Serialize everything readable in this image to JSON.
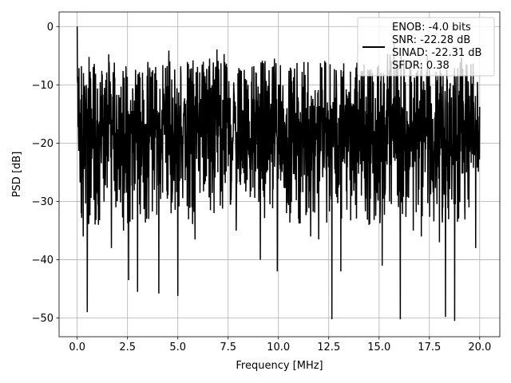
{
  "chart_data": {
    "type": "line",
    "xlabel": "Frequency [MHz]",
    "ylabel": "PSD [dB]",
    "xlim": [
      -0.9,
      21.0
    ],
    "ylim": [
      -53.2,
      2.5
    ],
    "x_ticks": [
      0.0,
      2.5,
      5.0,
      7.5,
      10.0,
      12.5,
      15.0,
      17.5,
      20.0
    ],
    "x_tick_labels": [
      "0.0",
      "2.5",
      "5.0",
      "7.5",
      "10.0",
      "12.5",
      "15.0",
      "17.5",
      "20.0"
    ],
    "y_ticks": [
      0,
      -10,
      -20,
      -30,
      -40,
      -50
    ],
    "y_tick_labels": [
      "0",
      "−10",
      "−20",
      "−30",
      "−40",
      "−50"
    ],
    "grid": true,
    "legend_position": "top-right",
    "legend": {
      "lines": [
        "ENOB: -4.0 bits",
        "SNR: -22.28 dB",
        "SINAD: -22.31 dB",
        "SFDR: 0.38"
      ]
    },
    "series": [
      {
        "color": "#000000",
        "x_range": [
          0.0,
          20.0
        ],
        "typical_band_db": [
          -28,
          -8
        ],
        "peak": {
          "x": 0.0,
          "y": 0.0
        },
        "dips": [
          {
            "x": 0.2,
            "y": -32
          },
          {
            "x": 0.3,
            "y": -36
          },
          {
            "x": 0.5,
            "y": -49
          },
          {
            "x": 0.6,
            "y": -32
          },
          {
            "x": 1.05,
            "y": -34
          },
          {
            "x": 1.7,
            "y": -38
          },
          {
            "x": 2.3,
            "y": -35
          },
          {
            "x": 2.55,
            "y": -43.5
          },
          {
            "x": 3.0,
            "y": -45.5
          },
          {
            "x": 3.55,
            "y": -33
          },
          {
            "x": 4.05,
            "y": -45.8
          },
          {
            "x": 5.0,
            "y": -46.2
          },
          {
            "x": 5.85,
            "y": -36.5
          },
          {
            "x": 6.8,
            "y": -32
          },
          {
            "x": 7.9,
            "y": -35
          },
          {
            "x": 9.1,
            "y": -40
          },
          {
            "x": 9.95,
            "y": -42
          },
          {
            "x": 10.4,
            "y": -32
          },
          {
            "x": 11.6,
            "y": -36
          },
          {
            "x": 12.0,
            "y": -36.5
          },
          {
            "x": 12.65,
            "y": -50.2
          },
          {
            "x": 13.1,
            "y": -42
          },
          {
            "x": 14.5,
            "y": -34
          },
          {
            "x": 15.15,
            "y": -41
          },
          {
            "x": 16.05,
            "y": -50.2
          },
          {
            "x": 16.7,
            "y": -35
          },
          {
            "x": 17.1,
            "y": -36
          },
          {
            "x": 18.0,
            "y": -37
          },
          {
            "x": 18.3,
            "y": -49.8
          },
          {
            "x": 18.75,
            "y": -50.5
          },
          {
            "x": 19.8,
            "y": -38
          }
        ],
        "spikes": [
          {
            "x": 4.6,
            "y": -6.0
          },
          {
            "x": 5.75,
            "y": -5.8
          },
          {
            "x": 7.0,
            "y": -5.9
          },
          {
            "x": 9.8,
            "y": -5.5
          },
          {
            "x": 12.3,
            "y": -5.9
          },
          {
            "x": 15.6,
            "y": -5.9
          },
          {
            "x": 19.1,
            "y": -5.7
          }
        ]
      }
    ]
  }
}
